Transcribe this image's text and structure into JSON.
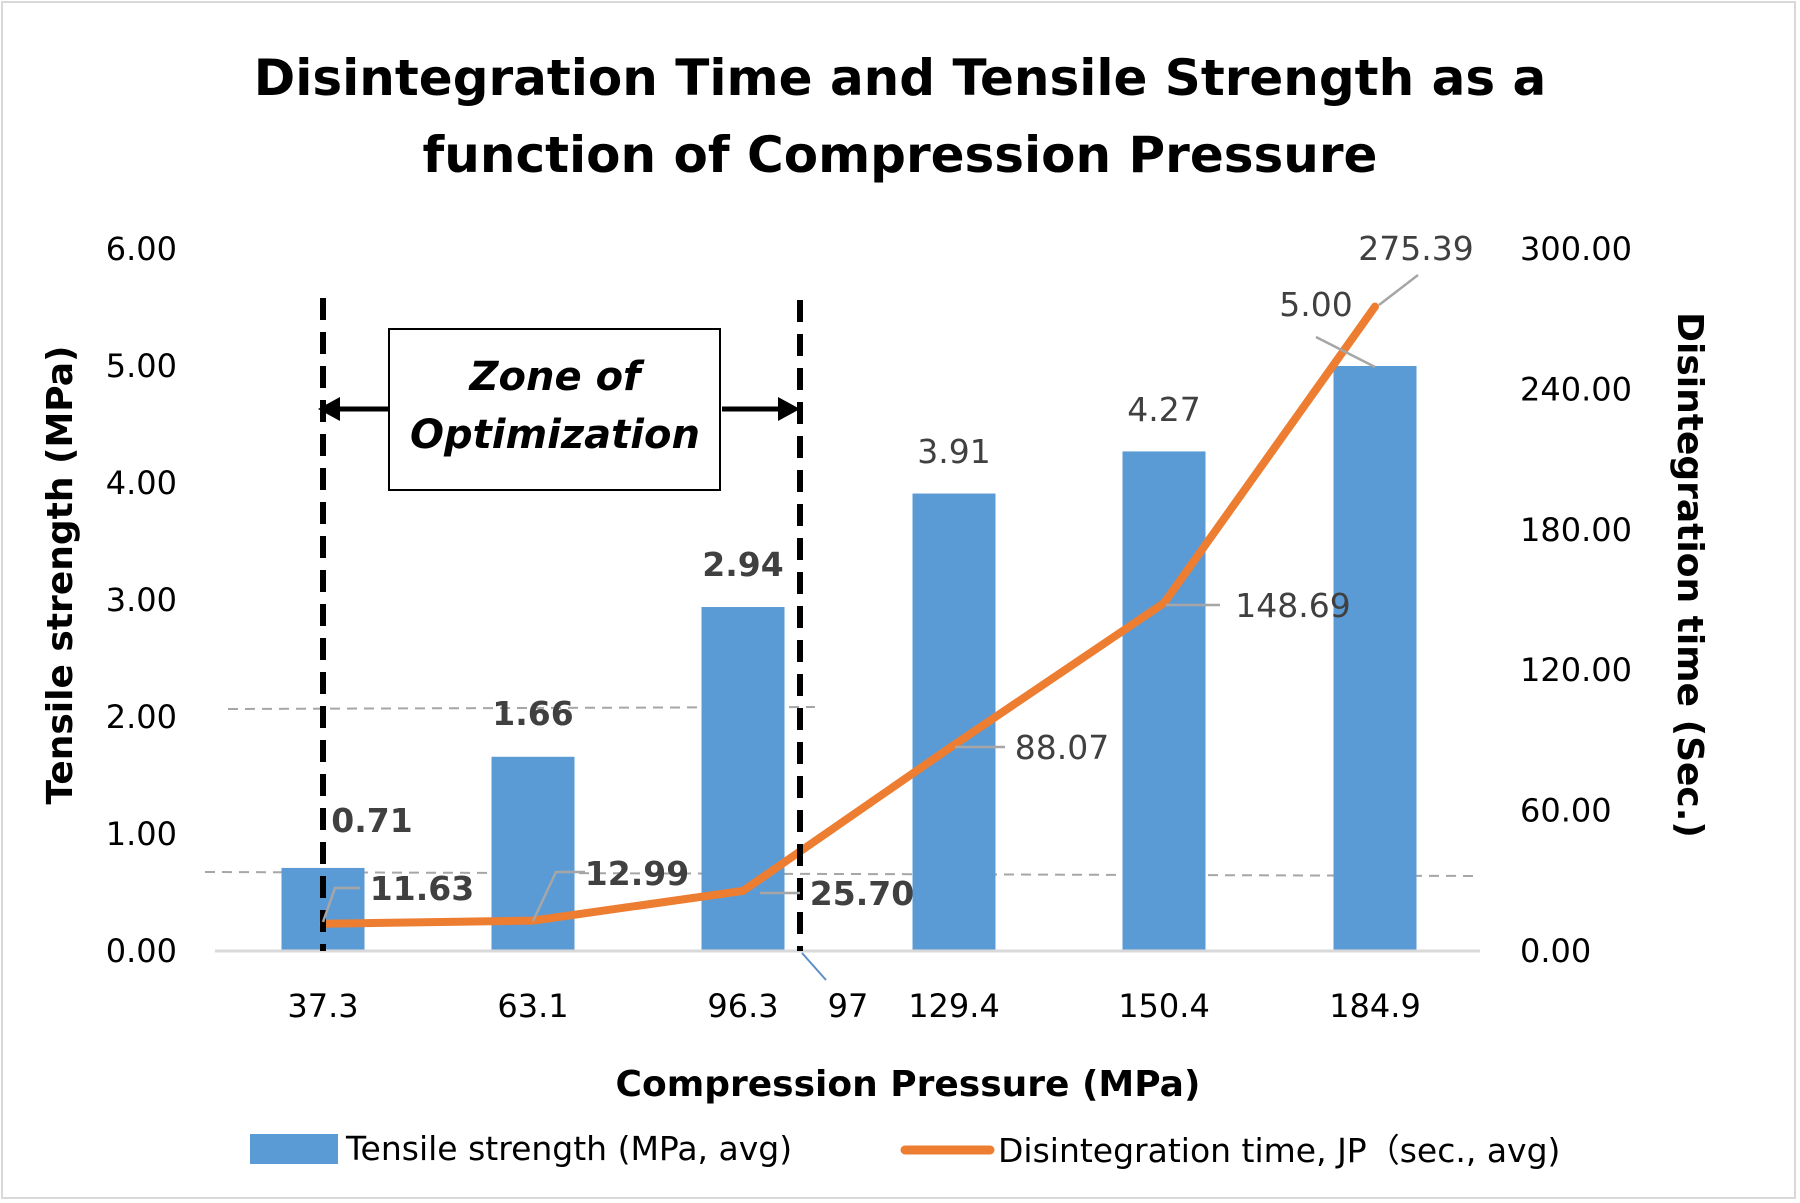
{
  "chart_data": {
    "type": "bar+line",
    "title": [
      "Disintegration Time and Tensile Strength as a",
      "function of Compression Pressure"
    ],
    "xlabel": "Compression Pressure (MPa)",
    "ylabel_left": "Tensile strength (MPa)",
    "ylabel_right": "Disintegration time (Sec.)",
    "categories": [
      "37.3",
      "63.1",
      "96.3",
      "129.4",
      "150.4",
      "184.9"
    ],
    "ylim_left": [
      0,
      6
    ],
    "ylim_right": [
      0,
      300
    ],
    "yticks_left": [
      "0.00",
      "1.00",
      "2.00",
      "3.00",
      "4.00",
      "5.00",
      "6.00"
    ],
    "yticks_right": [
      "0.00",
      "60.00",
      "120.00",
      "180.00",
      "240.00",
      "300.00"
    ],
    "series": [
      {
        "name": "Tensile strength (MPa, avg)",
        "type": "bar",
        "axis": "left",
        "color": "#5b9bd5",
        "values": [
          0.71,
          1.66,
          2.94,
          3.91,
          4.27,
          5.0
        ],
        "labels": [
          "0.71",
          "1.66",
          "2.94",
          "3.91",
          "4.27",
          "5.00"
        ]
      },
      {
        "name": "Disintegration time, JP（sec., avg)",
        "type": "line",
        "axis": "right",
        "color": "#ed7d31",
        "values": [
          11.63,
          12.99,
          25.7,
          88.07,
          148.69,
          275.39
        ],
        "labels": [
          "11.63",
          "12.99",
          "25.70",
          "88.07",
          "148.69",
          "275.39"
        ]
      }
    ],
    "annotations": {
      "zone_label": [
        "Zone of",
        "Optimization"
      ],
      "zone_boundary_label": "97",
      "reference_lines_left_axis": [
        2.0,
        0.68
      ]
    },
    "legend": "bottom",
    "grid": false
  }
}
